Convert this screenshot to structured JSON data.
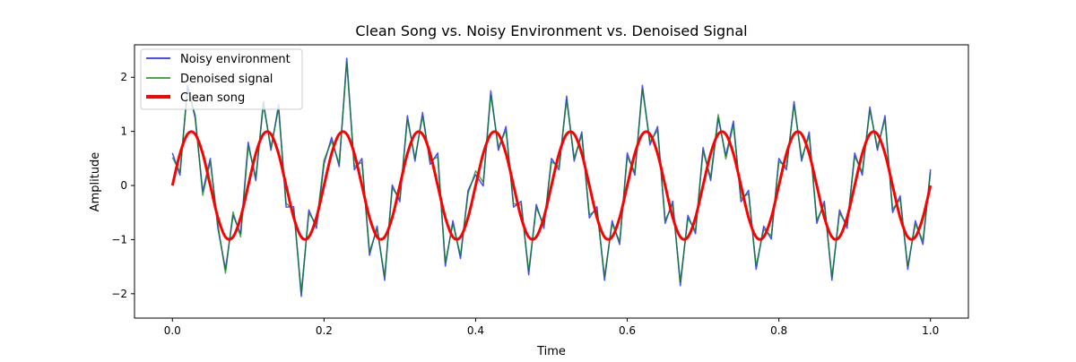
{
  "chart_data": {
    "type": "line",
    "title": "Clean Song vs. Noisy Environment vs. Denoised Signal",
    "xlabel": "Time",
    "ylabel": "Amplitude",
    "xlim": [
      -0.05,
      1.05
    ],
    "ylim": [
      -2.45,
      2.6
    ],
    "xticks": [
      0.0,
      0.2,
      0.4,
      0.6,
      0.8,
      1.0
    ],
    "xtick_labels": [
      "0.0",
      "0.2",
      "0.4",
      "0.6",
      "0.8",
      "1.0"
    ],
    "yticks": [
      -2,
      -1,
      0,
      1,
      2
    ],
    "ytick_labels": [
      "−2",
      "−1",
      "0",
      "1",
      "2"
    ],
    "grid": false,
    "legend_position": "top-left",
    "x_step": 0.01,
    "series": [
      {
        "name": "Noisy environment",
        "color": "#0000ff",
        "opacity": 0.7,
        "line_width": 1.5,
        "values": [
          0.6,
          0.19,
          1.85,
          1.25,
          -0.11,
          0.5,
          -0.79,
          -1.55,
          -0.55,
          -0.89,
          0.8,
          0.09,
          1.55,
          0.65,
          1.49,
          -0.4,
          -0.39,
          -2.05,
          -0.45,
          -0.79,
          0.4,
          0.89,
          0.35,
          2.35,
          0.29,
          0.5,
          -1.29,
          -0.75,
          -1.75,
          0.01,
          -0.3,
          1.29,
          0.45,
          1.35,
          0.39,
          0.6,
          -1.49,
          -0.65,
          -1.35,
          -0.09,
          0.2,
          -0.01,
          1.75,
          0.65,
          1.09,
          -0.4,
          -0.29,
          -1.65,
          -0.35,
          -0.79,
          0.5,
          0.29,
          1.65,
          0.45,
          0.99,
          -0.6,
          -0.39,
          -1.75,
          -0.65,
          -1.09,
          0.6,
          0.19,
          1.85,
          0.75,
          1.09,
          -0.7,
          -0.29,
          -1.85,
          -0.55,
          -0.89,
          0.7,
          0.09,
          1.25,
          0.55,
          1.19,
          -0.3,
          -0.09,
          -1.55,
          -0.75,
          -0.99,
          0.5,
          0.29,
          1.55,
          0.45,
          0.99,
          -0.7,
          -0.29,
          -1.75,
          -0.45,
          -0.79,
          0.6,
          0.19,
          1.45,
          0.65,
          1.29,
          -0.5,
          -0.19,
          -1.55,
          -0.65,
          -1.09,
          0.3
        ]
      },
      {
        "name": "Denoised signal",
        "color": "#008000",
        "opacity": 0.7,
        "line_width": 1.5,
        "values": [
          0.52,
          0.25,
          1.78,
          1.31,
          -0.18,
          0.44,
          -0.72,
          -1.62,
          -0.49,
          -0.95,
          0.73,
          0.15,
          1.49,
          0.71,
          1.42,
          -0.33,
          -0.45,
          -1.98,
          -0.51,
          -0.72,
          0.47,
          0.82,
          0.41,
          2.28,
          0.35,
          0.43,
          -1.22,
          -0.81,
          -1.68,
          -0.05,
          -0.24,
          1.22,
          0.51,
          1.28,
          0.45,
          0.53,
          -1.42,
          -0.71,
          -1.29,
          -0.15,
          0.27,
          0.06,
          1.68,
          0.71,
          1.02,
          -0.34,
          -0.35,
          -1.58,
          -0.41,
          -0.73,
          0.44,
          0.35,
          1.58,
          0.51,
          0.93,
          -0.54,
          -0.45,
          -1.68,
          -0.71,
          -1.03,
          0.53,
          0.25,
          1.78,
          0.81,
          1.02,
          -0.64,
          -0.35,
          -1.78,
          -0.61,
          -0.83,
          0.63,
          0.15,
          1.31,
          0.49,
          1.12,
          -0.24,
          -0.15,
          -1.49,
          -0.81,
          -0.93,
          0.44,
          0.35,
          1.49,
          0.51,
          0.92,
          -0.64,
          -0.35,
          -1.69,
          -0.51,
          -0.73,
          0.54,
          0.25,
          1.39,
          0.71,
          1.22,
          -0.44,
          -0.25,
          -1.49,
          -0.71,
          -1.02,
          0.24
        ]
      },
      {
        "name": "Clean song",
        "color": "#ff0000",
        "opacity": 1,
        "line_width": 3,
        "values": [
          0,
          0.59,
          0.95,
          0.95,
          0.59,
          0,
          -0.59,
          -0.95,
          -0.95,
          -0.59,
          0,
          0.59,
          0.95,
          0.95,
          0.59,
          0,
          -0.59,
          -0.95,
          -0.95,
          -0.59,
          0,
          0.59,
          0.95,
          0.95,
          0.59,
          0,
          -0.59,
          -0.95,
          -0.95,
          -0.59,
          0,
          0.59,
          0.95,
          0.95,
          0.59,
          0,
          -0.59,
          -0.95,
          -0.95,
          -0.59,
          0,
          0.59,
          0.95,
          0.95,
          0.59,
          0,
          -0.59,
          -0.95,
          -0.95,
          -0.59,
          0,
          0.59,
          0.95,
          0.95,
          0.59,
          0,
          -0.59,
          -0.95,
          -0.95,
          -0.59,
          0,
          0.59,
          0.95,
          0.95,
          0.59,
          0,
          -0.59,
          -0.95,
          -0.95,
          -0.59,
          0,
          0.59,
          0.95,
          0.95,
          0.59,
          0,
          -0.59,
          -0.95,
          -0.95,
          -0.59,
          0,
          0.59,
          0.95,
          0.95,
          0.59,
          0,
          -0.59,
          -0.95,
          -0.95,
          -0.59,
          0,
          0.59,
          0.95,
          0.95,
          0.59,
          0,
          -0.59,
          -0.95,
          -0.95,
          -0.59,
          0
        ]
      }
    ]
  }
}
